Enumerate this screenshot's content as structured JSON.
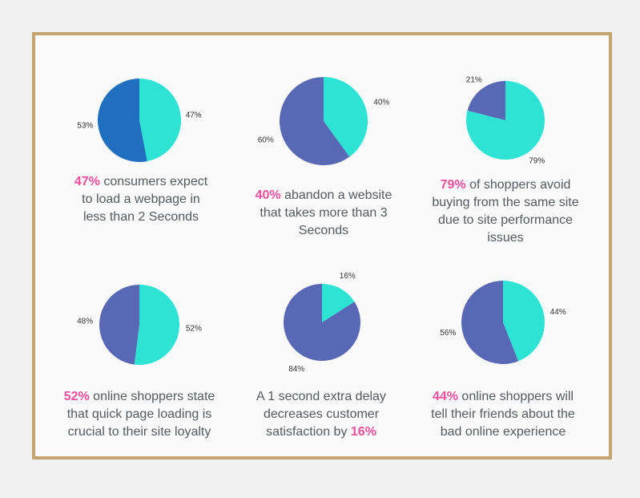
{
  "colors": {
    "teal": "#2de4d4",
    "blue": "#1f6fbe",
    "slate": "#5868b4",
    "highlight": "#ee4e9c",
    "border": "#c3a472"
  },
  "chart_data": [
    {
      "type": "pie",
      "slices": [
        {
          "label": "47%",
          "value": 47,
          "color": "#2de4d4"
        },
        {
          "label": "53%",
          "value": 53,
          "color": "#1f6fbe"
        }
      ]
    },
    {
      "type": "pie",
      "slices": [
        {
          "label": "40%",
          "value": 40,
          "color": "#2de4d4"
        },
        {
          "label": "60%",
          "value": 60,
          "color": "#5868b4"
        }
      ]
    },
    {
      "type": "pie",
      "slices": [
        {
          "label": "79%",
          "value": 79,
          "color": "#2de4d4"
        },
        {
          "label": "21%",
          "value": 21,
          "color": "#5868b4"
        }
      ]
    },
    {
      "type": "pie",
      "slices": [
        {
          "label": "52%",
          "value": 52,
          "color": "#2de4d4"
        },
        {
          "label": "48%",
          "value": 48,
          "color": "#5868b4"
        }
      ]
    },
    {
      "type": "pie",
      "slices": [
        {
          "label": "16%",
          "value": 16,
          "color": "#2de4d4"
        },
        {
          "label": "84%",
          "value": 84,
          "color": "#5868b4"
        }
      ]
    },
    {
      "type": "pie",
      "slices": [
        {
          "label": "44%",
          "value": 44,
          "color": "#2de4d4"
        },
        {
          "label": "56%",
          "value": 56,
          "color": "#5868b4"
        }
      ]
    }
  ],
  "captions": [
    {
      "hl": "47%",
      "text": " consumers expect to load a webpage in less than 2 Seconds"
    },
    {
      "hl": "40%",
      "text": " abandon a website that takes more than 3 Seconds"
    },
    {
      "hl": "79%",
      "text": " of shoppers avoid buying from the same site due to site performance issues"
    },
    {
      "hl": "52%",
      "text": " online shoppers state that quick page loading is crucial to their site loyalty"
    },
    {
      "pre": "A 1 second extra delay decreases customer satisfaction by ",
      "hl": "16%"
    },
    {
      "hl": "44%",
      "text": " online shoppers will tell their friends about the bad online experience"
    }
  ]
}
